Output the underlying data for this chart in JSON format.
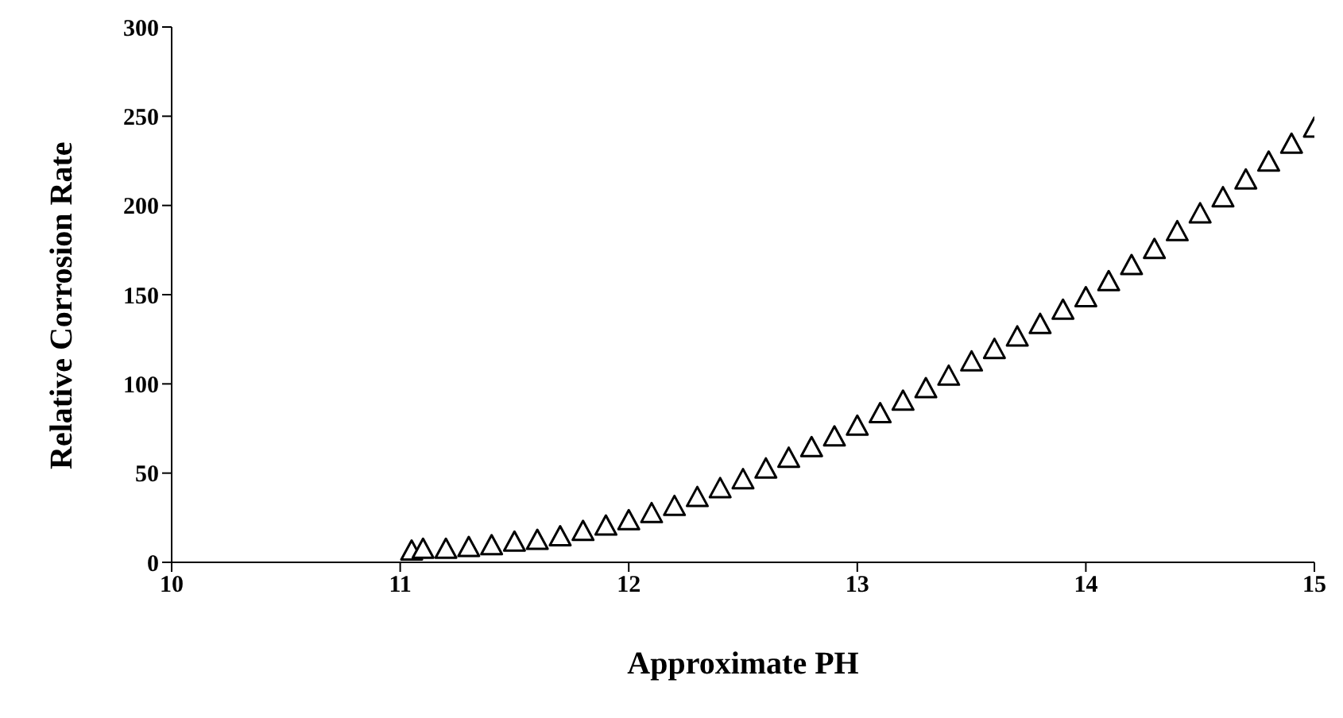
{
  "chart_data": {
    "type": "scatter",
    "xlabel": "Approximate PH",
    "ylabel": "Relative Corrosion Rate",
    "marker": "triangle",
    "color": "#000000",
    "xlim": [
      10,
      15
    ],
    "xticks": [
      10,
      11,
      12,
      13,
      14,
      15
    ],
    "ylim": [
      0,
      300
    ],
    "yticks": [
      0,
      50,
      100,
      150,
      200,
      250,
      300
    ],
    "x": [
      11.05,
      11.1,
      11.2,
      11.3,
      11.4,
      11.5,
      11.6,
      11.7,
      11.8,
      11.9,
      12.0,
      12.1,
      12.2,
      12.3,
      12.4,
      12.5,
      12.6,
      12.7,
      12.8,
      12.9,
      13.0,
      13.1,
      13.2,
      13.3,
      13.4,
      13.5,
      13.6,
      13.7,
      13.8,
      13.9,
      14.0,
      14.1,
      14.2,
      14.3,
      14.4,
      14.5,
      14.6,
      14.7,
      14.8,
      14.9,
      15.0
    ],
    "values": [
      6,
      7,
      7,
      8,
      9,
      11,
      12,
      14,
      17,
      20,
      23,
      27,
      31,
      36,
      41,
      46,
      52,
      58,
      64,
      70,
      76,
      83,
      90,
      97,
      104,
      112,
      119,
      126,
      133,
      141,
      148,
      157,
      166,
      175,
      185,
      195,
      204,
      214,
      224,
      234,
      243
    ]
  }
}
